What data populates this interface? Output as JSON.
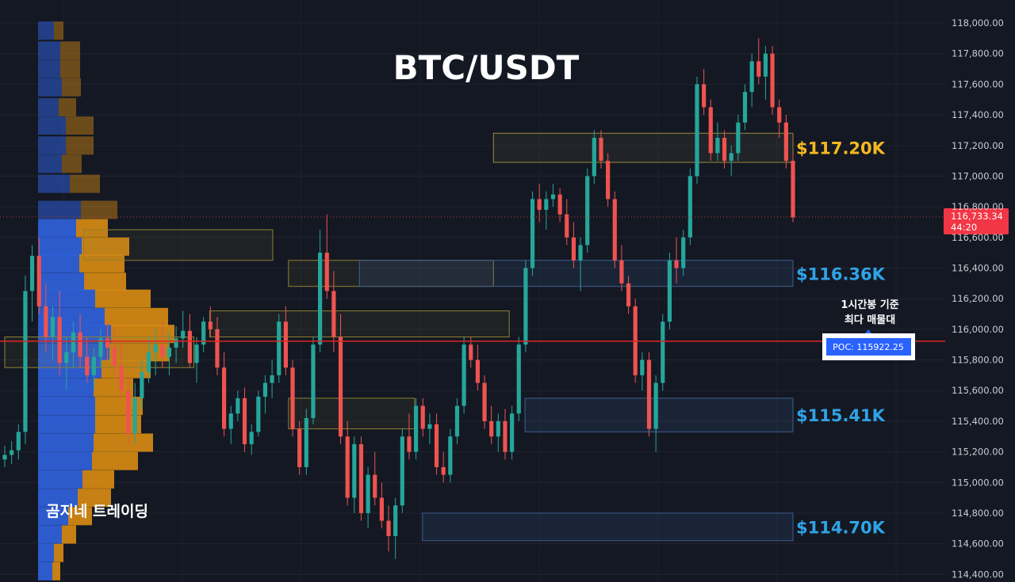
{
  "chart_data": {
    "type": "candlestick",
    "title": "BTC/USDT",
    "ylim": [
      114350,
      118150
    ],
    "y_ticks": [
      "114,400.00",
      "114,600.00",
      "114,800.00",
      "115,000.00",
      "115,200.00",
      "115,400.00",
      "115,600.00",
      "115,800.00",
      "116,000.00",
      "116,200.00",
      "116,400.00",
      "116,600.00",
      "116,800.00",
      "117,000.00",
      "117,200.00",
      "117,400.00",
      "117,600.00",
      "117,800.00",
      "118,000.00"
    ],
    "candles": [
      [
        115150,
        115240,
        115100,
        115180
      ],
      [
        115180,
        115270,
        115120,
        115210
      ],
      [
        115210,
        115380,
        115150,
        115330
      ],
      [
        115330,
        116350,
        115250,
        116250
      ],
      [
        116250,
        116550,
        116050,
        116480
      ],
      [
        116480,
        116600,
        116100,
        116150
      ],
      [
        116150,
        116300,
        115850,
        115950
      ],
      [
        115950,
        116150,
        115800,
        116080
      ],
      [
        116080,
        116250,
        115700,
        115780
      ],
      [
        115780,
        115950,
        115600,
        115850
      ],
      [
        115850,
        116050,
        115750,
        115980
      ],
      [
        115980,
        116100,
        115750,
        115820
      ],
      [
        115820,
        115950,
        115650,
        115700
      ],
      [
        115700,
        115880,
        115600,
        115820
      ],
      [
        115820,
        116000,
        115750,
        115940
      ],
      [
        115940,
        116050,
        115800,
        115880
      ],
      [
        115880,
        116020,
        115700,
        115760
      ],
      [
        115760,
        115900,
        115550,
        115600
      ],
      [
        115600,
        115700,
        115250,
        115320
      ],
      [
        115320,
        115650,
        115250,
        115550
      ],
      [
        115550,
        115800,
        115480,
        115720
      ],
      [
        115720,
        115950,
        115650,
        115850
      ],
      [
        115850,
        116000,
        115700,
        115900
      ],
      [
        115900,
        116050,
        115750,
        115820
      ],
      [
        115820,
        115980,
        115700,
        115880
      ],
      [
        115880,
        116020,
        115780,
        115940
      ],
      [
        115940,
        116120,
        115880,
        115990
      ],
      [
        115990,
        116100,
        115750,
        115780
      ],
      [
        115780,
        115950,
        115650,
        115900
      ],
      [
        115900,
        116080,
        115850,
        116050
      ],
      [
        116050,
        116150,
        115950,
        116000
      ],
      [
        116000,
        116080,
        115700,
        115750
      ],
      [
        115750,
        115850,
        115300,
        115350
      ],
      [
        115350,
        115500,
        115250,
        115450
      ],
      [
        115450,
        115600,
        115400,
        115550
      ],
      [
        115550,
        115620,
        115200,
        115250
      ],
      [
        115250,
        115380,
        115180,
        115330
      ],
      [
        115330,
        115600,
        115300,
        115560
      ],
      [
        115560,
        115700,
        115450,
        115650
      ],
      [
        115650,
        115800,
        115550,
        115700
      ],
      [
        115700,
        116100,
        115650,
        116050
      ],
      [
        116050,
        116150,
        115700,
        115750
      ],
      [
        115750,
        115800,
        115300,
        115350
      ],
      [
        115350,
        115400,
        115050,
        115100
      ],
      [
        115100,
        115480,
        115050,
        115420
      ],
      [
        115420,
        115950,
        115380,
        115900
      ],
      [
        115900,
        116650,
        115850,
        116500
      ],
      [
        116500,
        116750,
        116200,
        116250
      ],
      [
        116250,
        116380,
        115850,
        115950
      ],
      [
        115950,
        116100,
        115250,
        115300
      ],
      [
        115300,
        115400,
        114850,
        114900
      ],
      [
        114900,
        115300,
        114800,
        115250
      ],
      [
        115250,
        115300,
        114750,
        114800
      ],
      [
        114800,
        115100,
        114700,
        115050
      ],
      [
        115050,
        115200,
        114850,
        114900
      ],
      [
        114900,
        115000,
        114700,
        114750
      ],
      [
        114750,
        114850,
        114550,
        114650
      ],
      [
        114650,
        114900,
        114500,
        114850
      ],
      [
        114850,
        115350,
        114800,
        115300
      ],
      [
        115300,
        115450,
        115150,
        115200
      ],
      [
        115200,
        115550,
        115150,
        115500
      ],
      [
        115500,
        115550,
        115300,
        115350
      ],
      [
        115350,
        115450,
        115250,
        115380
      ],
      [
        115380,
        115450,
        115050,
        115100
      ],
      [
        115100,
        115200,
        115000,
        115050
      ],
      [
        115050,
        115350,
        115000,
        115300
      ],
      [
        115300,
        115550,
        115250,
        115500
      ],
      [
        115500,
        115950,
        115450,
        115900
      ],
      [
        115900,
        115950,
        115750,
        115800
      ],
      [
        115800,
        115900,
        115600,
        115650
      ],
      [
        115650,
        115700,
        115350,
        115400
      ],
      [
        115400,
        115500,
        115250,
        115300
      ],
      [
        115300,
        115450,
        115200,
        115400
      ],
      [
        115400,
        115480,
        115150,
        115200
      ],
      [
        115200,
        115500,
        115150,
        115450
      ],
      [
        115450,
        115950,
        115400,
        115900
      ],
      [
        115900,
        116450,
        115850,
        116400
      ],
      [
        116400,
        116900,
        116350,
        116850
      ],
      [
        116850,
        116950,
        116700,
        116780
      ],
      [
        116780,
        116900,
        116650,
        116850
      ],
      [
        116850,
        116950,
        116800,
        116880
      ],
      [
        116880,
        116920,
        116700,
        116750
      ],
      [
        116750,
        116850,
        116550,
        116600
      ],
      [
        116600,
        116700,
        116400,
        116450
      ],
      [
        116450,
        116600,
        116250,
        116550
      ],
      [
        116550,
        117050,
        116500,
        117000
      ],
      [
        117000,
        117300,
        116950,
        117250
      ],
      [
        117250,
        117300,
        117050,
        117100
      ],
      [
        117100,
        117150,
        116800,
        116850
      ],
      [
        116850,
        116900,
        116400,
        116450
      ],
      [
        116450,
        116550,
        116250,
        116300
      ],
      [
        116300,
        116350,
        116100,
        116150
      ],
      [
        116150,
        116200,
        115650,
        115700
      ],
      [
        115700,
        115850,
        115600,
        115800
      ],
      [
        115800,
        115850,
        115300,
        115350
      ],
      [
        115350,
        115700,
        115200,
        115650
      ],
      [
        115650,
        116100,
        115600,
        116050
      ],
      [
        116050,
        116500,
        116000,
        116450
      ],
      [
        116450,
        116600,
        116300,
        116400
      ],
      [
        116400,
        116650,
        116350,
        116600
      ],
      [
        116600,
        117050,
        116550,
        117000
      ],
      [
        117000,
        117650,
        116950,
        117600
      ],
      [
        117600,
        117700,
        117400,
        117450
      ],
      [
        117450,
        117500,
        117100,
        117150
      ],
      [
        117150,
        117350,
        117100,
        117250
      ],
      [
        117250,
        117300,
        117050,
        117100
      ],
      [
        117100,
        117200,
        117000,
        117150
      ],
      [
        117150,
        117400,
        117100,
        117350
      ],
      [
        117350,
        117600,
        117300,
        117550
      ],
      [
        117550,
        117800,
        117450,
        117750
      ],
      [
        117750,
        117900,
        117600,
        117650
      ],
      [
        117650,
        117850,
        117500,
        117800
      ],
      [
        117800,
        117850,
        117400,
        117450
      ],
      [
        117450,
        117500,
        117250,
        117350
      ],
      [
        117350,
        117400,
        117050,
        117100
      ],
      [
        117100,
        117150,
        116700,
        116730
      ]
    ],
    "volume_profile": [
      [
        117950,
        20,
        12
      ],
      [
        117820,
        28,
        25
      ],
      [
        117700,
        28,
        25
      ],
      [
        117580,
        30,
        24
      ],
      [
        117450,
        26,
        22
      ],
      [
        117330,
        35,
        35
      ],
      [
        117200,
        35,
        35
      ],
      [
        117080,
        30,
        25
      ],
      [
        116950,
        40,
        38
      ],
      [
        116780,
        54,
        46
      ],
      [
        116660,
        48,
        40
      ],
      [
        116540,
        55,
        60
      ],
      [
        116430,
        52,
        57
      ],
      [
        116310,
        58,
        53
      ],
      [
        116200,
        72,
        70
      ],
      [
        116080,
        84,
        80
      ],
      [
        115970,
        92,
        80
      ],
      [
        115850,
        90,
        75
      ],
      [
        115740,
        80,
        62
      ],
      [
        115620,
        70,
        50
      ],
      [
        115500,
        72,
        60
      ],
      [
        115380,
        72,
        58
      ],
      [
        115260,
        70,
        75
      ],
      [
        115140,
        68,
        58
      ],
      [
        115020,
        56,
        40
      ],
      [
        114900,
        50,
        42
      ],
      [
        114780,
        38,
        30
      ],
      [
        114660,
        30,
        18
      ],
      [
        114540,
        20,
        12
      ],
      [
        114420,
        18,
        10
      ]
    ],
    "poc": 115922.25,
    "poc_label": "POC: 115922.25",
    "current_price": "116,733.34",
    "countdown": "44:20",
    "zones": [
      {
        "label": "$117.20K",
        "label_color": "#f5b820",
        "top": 117280,
        "bottom": 117090,
        "from": 0.62,
        "to": 1.0
      },
      {
        "label": "$116.36K",
        "label_color": "#2fa4e7",
        "top": 116450,
        "bottom": 116280,
        "from": 0.45,
        "to": 1.0
      },
      {
        "label": "$115.41K",
        "label_color": "#2fa4e7",
        "top": 115550,
        "bottom": 115330,
        "from": 0.66,
        "to": 1.0
      },
      {
        "label": "$114.70K",
        "label_color": "#2fa4e7",
        "top": 114800,
        "bottom": 114620,
        "from": 0.53,
        "to": 1.0
      }
    ],
    "yellow_boxes": [
      [
        116650,
        116450,
        0.1,
        0.34
      ],
      [
        116450,
        116280,
        0.36,
        0.62
      ],
      [
        116120,
        115950,
        0.26,
        0.64
      ],
      [
        115950,
        115750,
        0.0,
        0.24
      ],
      [
        115550,
        115350,
        0.36,
        0.52
      ]
    ],
    "annotation_lines": [
      "1시간봉 기준",
      "최다 매물대"
    ],
    "watermark": "곰지네 트레이딩"
  },
  "colors": {
    "background": "#141823",
    "up": "#26a69a",
    "down": "#ef5350",
    "profile_blue": "#2e5fd6",
    "profile_orange": "#d68a12",
    "poc_line": "#e02424",
    "price_tag": "#f23645"
  }
}
